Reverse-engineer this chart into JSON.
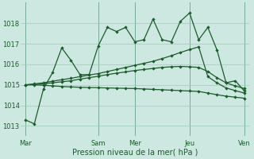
{
  "xlabel": "Pression niveau de la mer( hPa )",
  "background_color": "#cce8e0",
  "grid_color": "#99ccbb",
  "line_color": "#1a5c2a",
  "vline_color": "#336644",
  "ylim": [
    1012.5,
    1019.0
  ],
  "yticks": [
    1013,
    1014,
    1015,
    1016,
    1017,
    1018
  ],
  "day_labels": [
    "Mar",
    "",
    "Sam",
    "Mer",
    "",
    "Jeu",
    "",
    "Ven"
  ],
  "day_x": [
    0,
    4,
    8,
    12,
    15,
    18,
    21,
    24
  ],
  "vline_x": [
    0,
    8,
    12,
    18,
    24
  ],
  "n_points": 25,
  "series1": [
    1013.3,
    1013.1,
    1014.8,
    1015.6,
    1016.8,
    1016.2,
    1015.5,
    1015.5,
    1016.9,
    1017.8,
    1017.6,
    1017.8,
    1017.1,
    1017.2,
    1018.2,
    1017.2,
    1017.1,
    1018.1,
    1018.5,
    1017.2,
    1017.8,
    1016.7,
    1015.1,
    1015.2,
    1014.7
  ],
  "series2": [
    1015.0,
    1015.05,
    1015.1,
    1015.18,
    1015.25,
    1015.32,
    1015.4,
    1015.48,
    1015.55,
    1015.65,
    1015.75,
    1015.85,
    1015.95,
    1016.05,
    1016.15,
    1016.28,
    1016.42,
    1016.58,
    1016.72,
    1016.85,
    1015.4,
    1015.1,
    1014.85,
    1014.72,
    1014.6
  ],
  "series3": [
    1015.0,
    1015.02,
    1015.05,
    1015.1,
    1015.15,
    1015.2,
    1015.28,
    1015.35,
    1015.42,
    1015.5,
    1015.57,
    1015.63,
    1015.7,
    1015.75,
    1015.8,
    1015.85,
    1015.88,
    1015.9,
    1015.88,
    1015.85,
    1015.65,
    1015.35,
    1015.1,
    1014.95,
    1014.82
  ],
  "series4": [
    1015.0,
    1015.0,
    1014.98,
    1014.95,
    1014.92,
    1014.9,
    1014.88,
    1014.87,
    1014.86,
    1014.85,
    1014.84,
    1014.83,
    1014.82,
    1014.8,
    1014.78,
    1014.76,
    1014.74,
    1014.72,
    1014.7,
    1014.68,
    1014.6,
    1014.52,
    1014.45,
    1014.4,
    1014.35
  ],
  "ytick_fontsize": 6,
  "xtick_fontsize": 6,
  "xlabel_fontsize": 7
}
